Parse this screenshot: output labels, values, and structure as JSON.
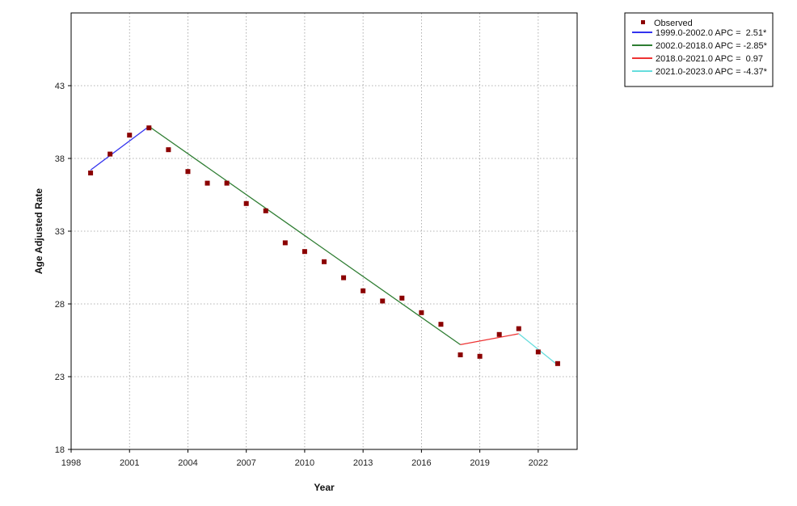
{
  "chart_data": {
    "type": "scatter",
    "xlabel": "Year",
    "ylabel": "Age Adjusted Rate",
    "xlim": [
      1998,
      2024
    ],
    "ylim": [
      18,
      48
    ],
    "x_ticks": [
      1998,
      2001,
      2004,
      2007,
      2010,
      2013,
      2016,
      2019,
      2022
    ],
    "y_ticks": [
      18,
      23,
      28,
      33,
      38,
      43
    ],
    "grid": true,
    "legend_position": "top-right-outside",
    "observed": {
      "name": "Observed",
      "color": "#8b0000",
      "x": [
        1999,
        2000,
        2001,
        2002,
        2003,
        2004,
        2005,
        2006,
        2007,
        2008,
        2009,
        2010,
        2011,
        2012,
        2013,
        2014,
        2015,
        2016,
        2017,
        2018,
        2019,
        2020,
        2021,
        2022,
        2023
      ],
      "y": [
        37.0,
        38.3,
        39.6,
        40.1,
        38.6,
        37.1,
        36.3,
        36.3,
        34.9,
        34.4,
        32.2,
        31.6,
        30.9,
        29.8,
        28.9,
        28.2,
        28.4,
        27.4,
        26.6,
        24.5,
        24.4,
        25.9,
        26.3,
        24.7,
        23.9
      ]
    },
    "trend_segments": [
      {
        "name": "1999.0-2002.0 APC =  2.51*",
        "color": "#3333ee",
        "x": [
          1999,
          2002
        ],
        "y": [
          37.2,
          40.2
        ]
      },
      {
        "name": "2002.0-2018.0 APC = -2.85*",
        "color": "#2e7d32",
        "x": [
          2002,
          2018
        ],
        "y": [
          40.2,
          25.2
        ]
      },
      {
        "name": "2018.0-2021.0 APC =  0.97",
        "color": "#ee3333",
        "x": [
          2018,
          2021
        ],
        "y": [
          25.2,
          25.95
        ]
      },
      {
        "name": "2021.0-2023.0 APC = -4.37*",
        "color": "#66dddd",
        "x": [
          2021,
          2023
        ],
        "y": [
          25.95,
          23.8
        ]
      }
    ]
  }
}
